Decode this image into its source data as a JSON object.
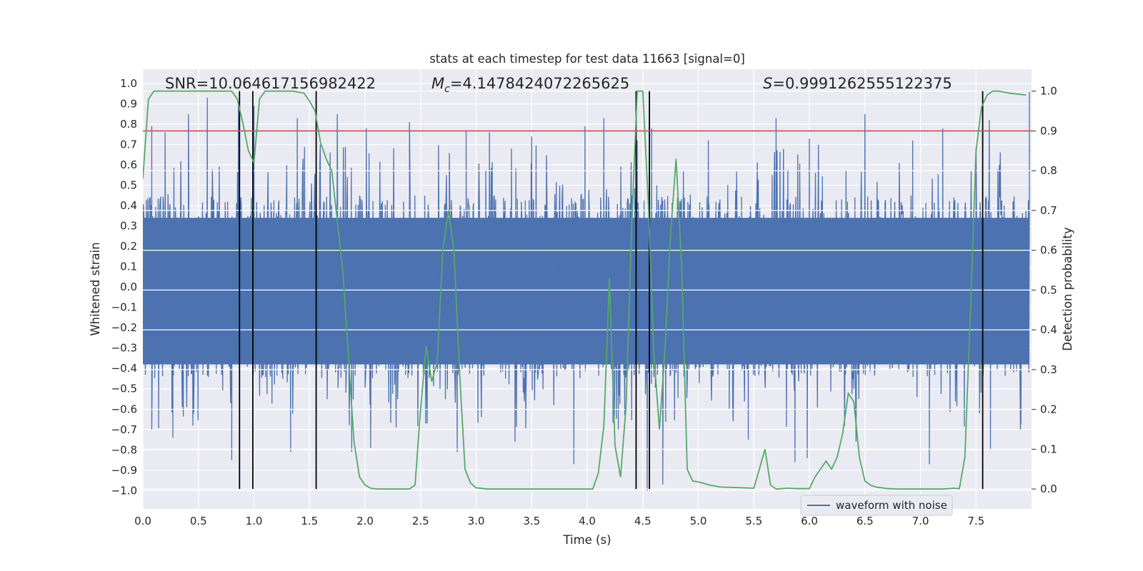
{
  "chart_data": {
    "type": "line",
    "title": "stats at each timestep for test data 11663 [signal=0]",
    "xlabel": "Time (s)",
    "ylabel": "Whitened strain",
    "y2label": "Detection probability",
    "xlim": [
      0.0,
      8.0
    ],
    "ylim": [
      -1.09,
      1.07
    ],
    "y2lim": [
      -0.05,
      1.055
    ],
    "x_ticks": [
      "0.0",
      "0.5",
      "1.0",
      "1.5",
      "2.0",
      "2.5",
      "3.0",
      "3.5",
      "4.0",
      "4.5",
      "5.0",
      "5.5",
      "6.0",
      "6.5",
      "7.0",
      "7.5"
    ],
    "y_ticks": [
      "1.0",
      "0.9",
      "0.8",
      "0.7",
      "0.6",
      "0.5",
      "0.4",
      "0.3",
      "0.2",
      "0.1",
      "0.0",
      "-0.1",
      "-0.2",
      "-0.3",
      "-0.4",
      "-0.5",
      "-0.6",
      "-0.7",
      "-0.8",
      "-0.9",
      "-1.0"
    ],
    "y2_ticks": [
      "1.0",
      "0.9",
      "0.8",
      "0.7",
      "0.6",
      "0.5",
      "0.4",
      "0.3",
      "0.2",
      "0.1",
      "0.0"
    ],
    "annotations": {
      "snr": "SNR=10.064617156982422",
      "mc_symbol": "M",
      "mc_sub": "c",
      "mc_value": "=4.1478424072265625",
      "s_symbol": "S",
      "s_value": "=0.9991262555122375"
    },
    "legend": {
      "label": "waveform with noise",
      "position": "lower-right"
    },
    "threshold": {
      "y2": 0.9,
      "color": "#c44e52"
    },
    "vertical_lines": [
      0.87,
      0.99,
      1.56,
      4.44,
      4.56,
      7.56
    ],
    "waveform": {
      "name": "waveform with noise",
      "color": "#4c72b0",
      "x_range": [
        0.0,
        7.98
      ],
      "core_amplitude": 0.45,
      "peaks_up": [
        [
          0.08,
          0.79
        ],
        [
          0.2,
          0.76
        ],
        [
          0.41,
          0.85
        ],
        [
          0.58,
          0.93
        ],
        [
          0.86,
          0.91
        ],
        [
          1.0,
          0.89
        ],
        [
          1.39,
          0.83
        ],
        [
          1.75,
          0.85
        ],
        [
          2.01,
          0.78
        ],
        [
          2.4,
          0.81
        ],
        [
          2.91,
          0.77
        ],
        [
          3.12,
          0.76
        ],
        [
          3.5,
          0.74
        ],
        [
          3.98,
          0.79
        ],
        [
          4.15,
          0.83
        ],
        [
          4.45,
          0.72
        ],
        [
          4.58,
          0.78
        ],
        [
          5.09,
          0.72
        ],
        [
          5.7,
          0.83
        ],
        [
          6.0,
          0.73
        ],
        [
          6.5,
          0.85
        ],
        [
          6.93,
          0.72
        ],
        [
          7.2,
          0.78
        ],
        [
          7.62,
          0.82
        ],
        [
          7.98,
          0.96
        ]
      ],
      "peaks_down": [
        [
          0.08,
          -0.7
        ],
        [
          0.27,
          -0.74
        ],
        [
          0.45,
          -0.68
        ],
        [
          0.8,
          -0.85
        ],
        [
          1.33,
          -0.81
        ],
        [
          1.88,
          -0.81
        ],
        [
          2.05,
          -0.79
        ],
        [
          2.83,
          -0.81
        ],
        [
          3.35,
          -0.76
        ],
        [
          3.88,
          -0.87
        ],
        [
          4.28,
          -0.7
        ],
        [
          4.54,
          -1.0
        ],
        [
          4.68,
          -0.97
        ],
        [
          5.45,
          -0.75
        ],
        [
          5.87,
          -0.86
        ],
        [
          5.98,
          -0.84
        ],
        [
          6.42,
          -0.76
        ],
        [
          7.08,
          -0.87
        ],
        [
          7.63,
          -0.8
        ],
        [
          7.9,
          -0.7
        ]
      ]
    },
    "detection_probability": {
      "color": "#55a868",
      "x": [
        0.0,
        0.05,
        0.1,
        0.15,
        0.3,
        0.5,
        0.6,
        0.7,
        0.8,
        0.85,
        0.9,
        0.95,
        1.0,
        1.05,
        1.1,
        1.2,
        1.35,
        1.45,
        1.5,
        1.55,
        1.6,
        1.65,
        1.7,
        1.8,
        1.9,
        1.95,
        2.0,
        2.05,
        2.1,
        2.2,
        2.3,
        2.4,
        2.45,
        2.5,
        2.55,
        2.6,
        2.65,
        2.7,
        2.75,
        2.8,
        2.85,
        2.9,
        2.95,
        3.0,
        3.1,
        3.3,
        3.5,
        3.7,
        3.9,
        4.05,
        4.1,
        4.15,
        4.2,
        4.25,
        4.3,
        4.35,
        4.4,
        4.45,
        4.5,
        4.55,
        4.6,
        4.65,
        4.7,
        4.75,
        4.8,
        4.85,
        4.9,
        4.95,
        5.0,
        5.1,
        5.2,
        5.4,
        5.5,
        5.55,
        5.6,
        5.65,
        5.7,
        5.8,
        5.9,
        6.0,
        6.05,
        6.1,
        6.15,
        6.2,
        6.25,
        6.3,
        6.35,
        6.4,
        6.45,
        6.5,
        6.55,
        6.6,
        6.7,
        6.8,
        7.0,
        7.2,
        7.3,
        7.35,
        7.4,
        7.45,
        7.5,
        7.55,
        7.6,
        7.65,
        7.7,
        7.8,
        7.95
      ],
      "y": [
        0.78,
        0.98,
        1.0,
        1.0,
        1.0,
        1.0,
        1.0,
        1.0,
        1.0,
        0.98,
        0.92,
        0.85,
        0.82,
        0.98,
        1.0,
        1.0,
        1.0,
        0.995,
        0.975,
        0.95,
        0.87,
        0.83,
        0.8,
        0.55,
        0.12,
        0.03,
        0.01,
        0.002,
        0.0,
        0.0,
        0.0,
        0.0,
        0.01,
        0.2,
        0.36,
        0.27,
        0.32,
        0.6,
        0.7,
        0.6,
        0.3,
        0.05,
        0.015,
        0.003,
        0.0,
        0.0,
        0.0,
        0.0,
        0.0,
        0.0,
        0.04,
        0.16,
        0.53,
        0.11,
        0.03,
        0.21,
        0.66,
        1.0,
        1.0,
        0.72,
        0.34,
        0.15,
        0.35,
        0.64,
        0.83,
        0.56,
        0.05,
        0.02,
        0.018,
        0.01,
        0.005,
        0.003,
        0.002,
        0.05,
        0.1,
        0.01,
        0.0,
        0.002,
        0.001,
        0.001,
        0.03,
        0.05,
        0.07,
        0.05,
        0.08,
        0.14,
        0.24,
        0.22,
        0.08,
        0.02,
        0.01,
        0.005,
        0.001,
        0.0,
        0.0,
        0.0,
        0.002,
        0.001,
        0.08,
        0.45,
        0.85,
        0.96,
        0.99,
        1.0,
        1.0,
        0.995,
        0.99
      ]
    }
  }
}
